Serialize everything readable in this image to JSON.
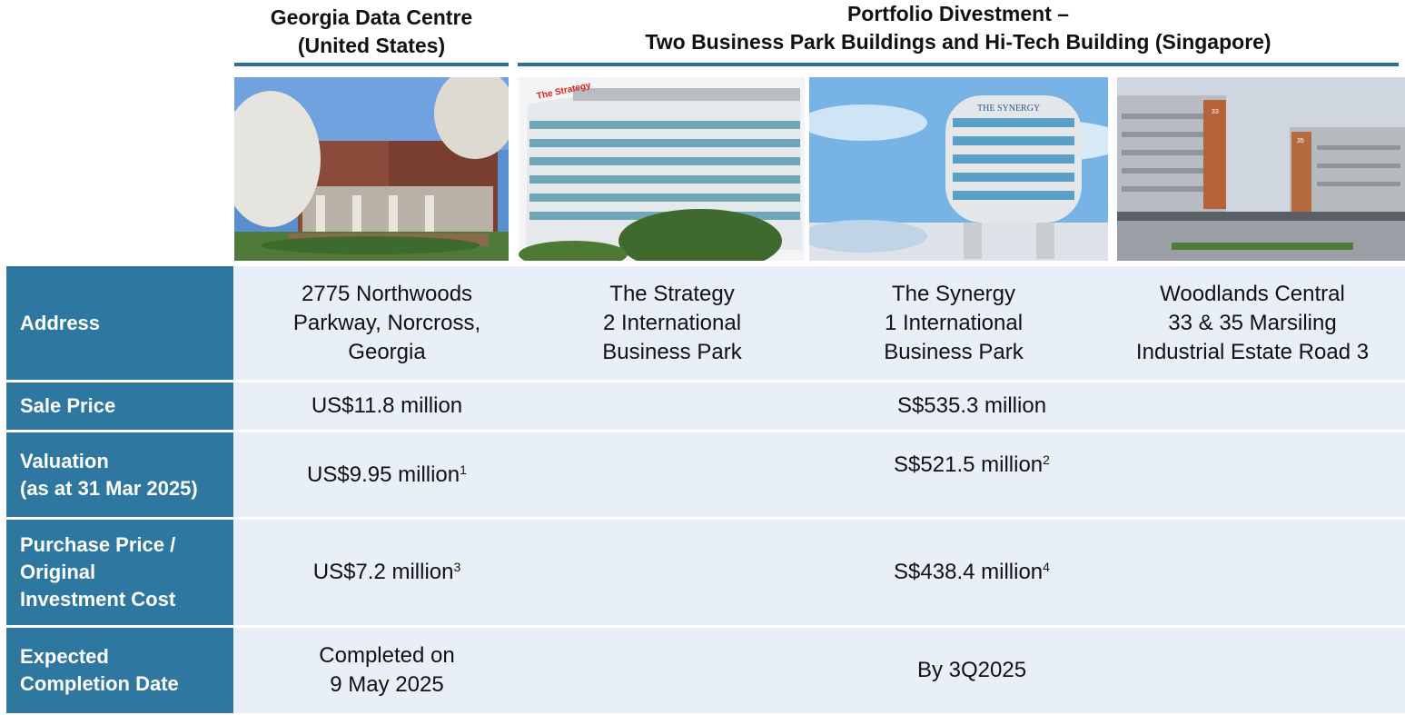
{
  "header": {
    "georgia_title": [
      "Georgia Data Centre",
      "(United States)"
    ],
    "portfolio_title": [
      "Portfolio Divestment –",
      "Two Business Park Buildings and Hi-Tech Building (Singapore)"
    ]
  },
  "photos": {
    "georgia": {
      "alt": "Georgia data centre building with flowering trees"
    },
    "strategy": {
      "alt": "The Strategy office building",
      "sign": "The Strategy"
    },
    "synergy": {
      "alt": "The Synergy round tower",
      "sign": "THE SYNERGY"
    },
    "woodlands": {
      "alt": "Woodlands Central industrial buildings",
      "sign_a": "33",
      "sign_b": "35"
    }
  },
  "rows": {
    "address": {
      "label": [
        "Address"
      ],
      "georgia": [
        "2775 Northwoods",
        "Parkway, Norcross,",
        "Georgia"
      ],
      "strategy": [
        "The Strategy",
        "2 International",
        "Business Park"
      ],
      "synergy": [
        "The Synergy",
        "1 International",
        "Business Park"
      ],
      "woodlands": [
        "Woodlands Central",
        "33 & 35 Marsiling",
        "Industrial Estate Road 3"
      ]
    },
    "sale_price": {
      "label": [
        "Sale Price"
      ],
      "georgia": "US$11.8 million",
      "portfolio": "S$535.3 million"
    },
    "valuation": {
      "label": [
        "Valuation",
        "(as at 31 Mar 2025)"
      ],
      "georgia": "US$9.95 million",
      "georgia_note": "1",
      "portfolio": "S$521.5 million",
      "portfolio_note": "2"
    },
    "purchase_price": {
      "label": [
        "Purchase Price /",
        "Original",
        "Investment Cost"
      ],
      "georgia": "US$7.2 million",
      "georgia_note": "3",
      "portfolio": "S$438.4 million",
      "portfolio_note": "4"
    },
    "completion": {
      "label": [
        "Expected",
        "Completion Date"
      ],
      "georgia": [
        "Completed on",
        "9 May 2025"
      ],
      "portfolio": "By 3Q2025"
    }
  },
  "colors": {
    "accent": "#2e77a0",
    "rule": "#2e6e96",
    "band": "#e8eff8"
  }
}
